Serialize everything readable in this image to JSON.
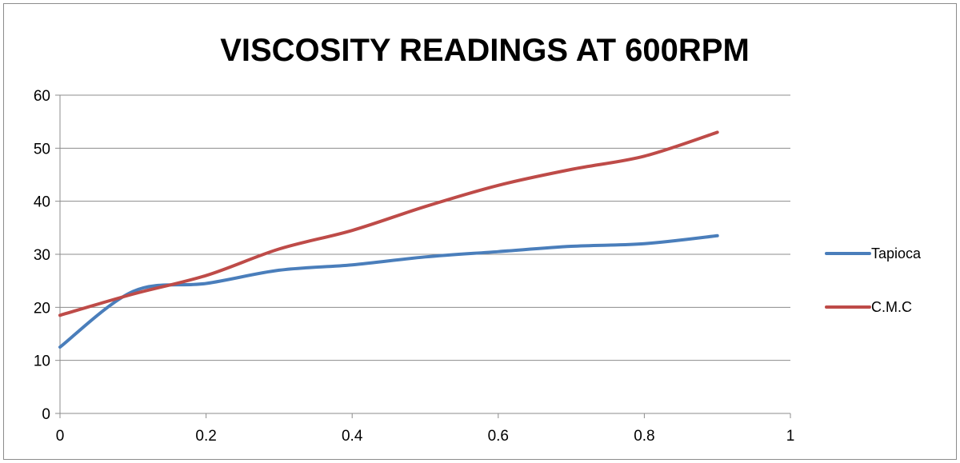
{
  "chart_data": {
    "type": "line",
    "title": "VISCOSITY READINGS AT 600RPM",
    "xlabel": "",
    "ylabel": "",
    "xlim": [
      0,
      1
    ],
    "ylim": [
      0,
      60
    ],
    "x_ticks": [
      "0",
      "0.2",
      "0.4",
      "0.6",
      "0.8",
      "1"
    ],
    "y_ticks": [
      "0",
      "10",
      "20",
      "30",
      "40",
      "50",
      "60"
    ],
    "grid": "horizontal",
    "legend_position": "right",
    "series": [
      {
        "name": "Tapioca",
        "color": "#4a7ebb",
        "x": [
          0,
          0.1,
          0.2,
          0.3,
          0.4,
          0.5,
          0.6,
          0.7,
          0.8,
          0.9
        ],
        "values": [
          12.5,
          23,
          24.5,
          27,
          28,
          29.5,
          30.5,
          31.5,
          32,
          33.5
        ]
      },
      {
        "name": "C.M.C",
        "color": "#be4b48",
        "x": [
          0,
          0.1,
          0.2,
          0.3,
          0.4,
          0.5,
          0.6,
          0.7,
          0.8,
          0.9
        ],
        "values": [
          18.5,
          22.5,
          26,
          31,
          34.5,
          39,
          43,
          46,
          48.5,
          53
        ]
      }
    ]
  }
}
